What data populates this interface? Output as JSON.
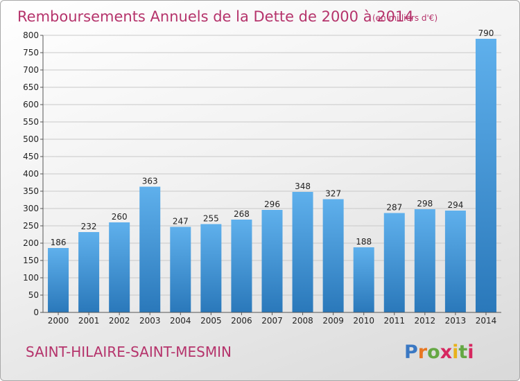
{
  "title": "Remboursements Annuels de la Dette de 2000 à 2014",
  "unit": "(en milliers d'€)",
  "commune": "SAINT-HILAIRE-SAINT-MESMIN",
  "logo": {
    "text": "Proxiti",
    "letters": [
      "P",
      "r",
      "o",
      "x",
      "i",
      "t",
      "i"
    ],
    "colors": [
      "#3a78c3",
      "#e87722",
      "#65a844",
      "#d6275f",
      "#e8b21a",
      "#65a844",
      "#d6275f"
    ]
  },
  "colors": {
    "title": "#b5336b",
    "bar_light": "#5fb0ec",
    "bar_dark": "#2a78ba",
    "grid": "#c8c8c8",
    "axis": "#555555"
  },
  "chart_data": {
    "type": "bar",
    "categories": [
      "2000",
      "2001",
      "2002",
      "2003",
      "2004",
      "2005",
      "2006",
      "2007",
      "2008",
      "2009",
      "2010",
      "2011",
      "2012",
      "2013",
      "2014"
    ],
    "values": [
      186,
      232,
      260,
      363,
      247,
      255,
      268,
      296,
      348,
      327,
      188,
      287,
      298,
      294,
      790
    ],
    "ylim": [
      0,
      800
    ],
    "yticks": [
      0,
      50,
      100,
      150,
      200,
      250,
      300,
      350,
      400,
      450,
      500,
      550,
      600,
      650,
      700,
      750,
      800
    ],
    "grid": true,
    "data_labels": true
  }
}
